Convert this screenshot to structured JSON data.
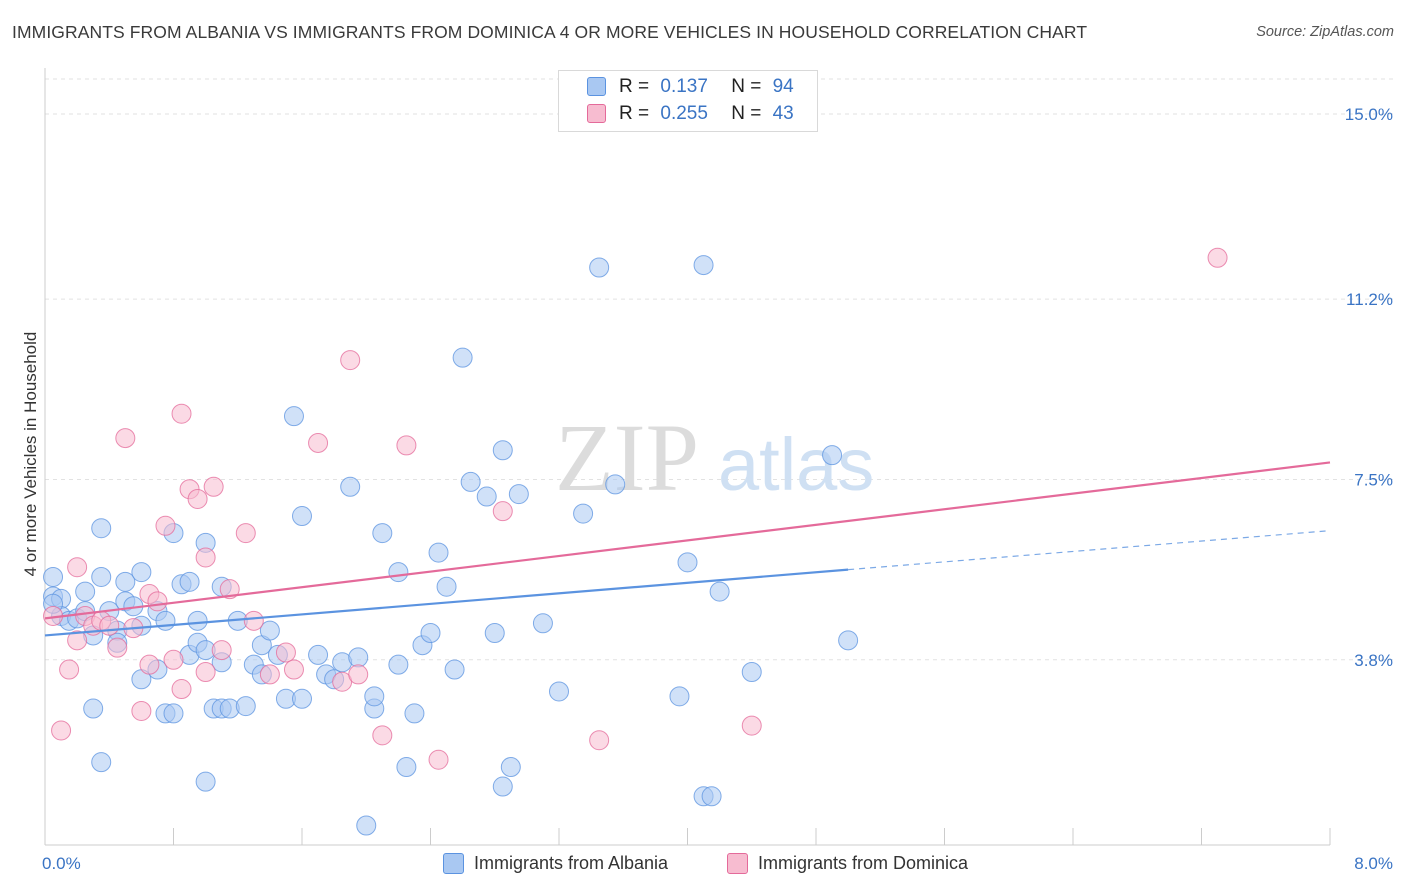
{
  "title": "IMMIGRANTS FROM ALBANIA VS IMMIGRANTS FROM DOMINICA 4 OR MORE VEHICLES IN HOUSEHOLD CORRELATION CHART",
  "source": "Source: ZipAtlas.com",
  "watermark": {
    "zip": "ZIP",
    "atlas": "atlas"
  },
  "legend": {
    "rows": [
      {
        "r_label": "R =",
        "r_value": "0.137",
        "n_label": "N =",
        "n_value": "94",
        "color": "#a9c8f2"
      },
      {
        "r_label": "R =",
        "r_value": "0.255",
        "n_label": "N =",
        "n_value": "43",
        "color": "#f7bcd0"
      }
    ]
  },
  "bottom_legend": [
    {
      "label": "Immigrants from Albania",
      "color": "#a9c8f2"
    },
    {
      "label": "Immigrants from Dominica",
      "color": "#f7bcd0"
    }
  ],
  "chart_data": {
    "type": "scatter",
    "title": "IMMIGRANTS FROM ALBANIA VS IMMIGRANTS FROM DOMINICA 4 OR MORE VEHICLES IN HOUSEHOLD CORRELATION CHART",
    "xlabel": "",
    "ylabel": "4 or more Vehicles in Household",
    "xlim": [
      0.0,
      8.0
    ],
    "ylim": [
      0.0,
      15.8
    ],
    "x_tick_labels": [
      "0.0%",
      "8.0%"
    ],
    "y_ticks": [
      3.8,
      7.5,
      11.2,
      15.0
    ],
    "y_tick_labels": [
      "3.8%",
      "7.5%",
      "11.2%",
      "15.0%"
    ],
    "grid": true,
    "legend_position": "top-center",
    "series": [
      {
        "name": "Immigrants from Albania",
        "color": "#5b93e0",
        "fill": "#a9c8f2",
        "r": 0.137,
        "n": 94,
        "trend": {
          "x": [
            0.0,
            5.0
          ],
          "y": [
            4.3,
            5.65
          ],
          "dashed_to": [
            8.0,
            6.45
          ]
        },
        "points": [
          [
            0.05,
            5.5
          ],
          [
            0.05,
            5.1
          ],
          [
            0.1,
            5.05
          ],
          [
            0.1,
            4.7
          ],
          [
            0.15,
            4.6
          ],
          [
            0.2,
            4.65
          ],
          [
            0.25,
            4.8
          ],
          [
            0.25,
            5.2
          ],
          [
            0.3,
            4.3
          ],
          [
            0.3,
            2.8
          ],
          [
            0.35,
            1.7
          ],
          [
            0.35,
            5.5
          ],
          [
            0.35,
            6.5
          ],
          [
            0.4,
            4.8
          ],
          [
            0.45,
            4.4
          ],
          [
            0.45,
            4.15
          ],
          [
            0.5,
            5.0
          ],
          [
            0.5,
            5.4
          ],
          [
            0.55,
            4.9
          ],
          [
            0.6,
            3.4
          ],
          [
            0.6,
            4.5
          ],
          [
            0.6,
            5.6
          ],
          [
            0.7,
            3.6
          ],
          [
            0.7,
            4.8
          ],
          [
            0.75,
            4.6
          ],
          [
            0.75,
            2.7
          ],
          [
            0.8,
            2.7
          ],
          [
            0.8,
            6.4
          ],
          [
            0.85,
            5.35
          ],
          [
            0.9,
            5.4
          ],
          [
            0.9,
            3.9
          ],
          [
            0.95,
            4.6
          ],
          [
            0.95,
            4.15
          ],
          [
            1.0,
            1.3
          ],
          [
            1.0,
            6.2
          ],
          [
            1.0,
            4.0
          ],
          [
            1.05,
            2.8
          ],
          [
            1.1,
            5.3
          ],
          [
            1.1,
            3.75
          ],
          [
            1.1,
            2.8
          ],
          [
            1.15,
            2.8
          ],
          [
            1.2,
            4.6
          ],
          [
            1.25,
            2.85
          ],
          [
            1.3,
            3.7
          ],
          [
            1.35,
            3.5
          ],
          [
            1.35,
            4.1
          ],
          [
            1.4,
            4.4
          ],
          [
            1.5,
            3.0
          ],
          [
            1.55,
            8.8
          ],
          [
            1.6,
            6.75
          ],
          [
            1.6,
            3.0
          ],
          [
            1.7,
            3.9
          ],
          [
            1.75,
            3.5
          ],
          [
            1.8,
            3.4
          ],
          [
            1.85,
            3.75
          ],
          [
            1.9,
            7.35
          ],
          [
            1.95,
            3.85
          ],
          [
            2.0,
            0.4
          ],
          [
            2.05,
            2.8
          ],
          [
            2.05,
            3.05
          ],
          [
            2.1,
            6.4
          ],
          [
            2.2,
            5.6
          ],
          [
            2.2,
            3.7
          ],
          [
            2.25,
            1.6
          ],
          [
            2.3,
            2.7
          ],
          [
            2.35,
            4.1
          ],
          [
            2.4,
            4.35
          ],
          [
            2.45,
            6.0
          ],
          [
            2.5,
            5.3
          ],
          [
            2.55,
            3.6
          ],
          [
            2.6,
            10.0
          ],
          [
            2.65,
            7.45
          ],
          [
            2.75,
            7.15
          ],
          [
            2.8,
            4.35
          ],
          [
            2.85,
            1.2
          ],
          [
            2.85,
            8.1
          ],
          [
            2.9,
            1.6
          ],
          [
            2.95,
            7.2
          ],
          [
            3.1,
            4.55
          ],
          [
            3.2,
            3.15
          ],
          [
            3.35,
            6.8
          ],
          [
            3.45,
            11.85
          ],
          [
            3.55,
            7.4
          ],
          [
            3.95,
            3.05
          ],
          [
            4.0,
            5.8
          ],
          [
            4.1,
            11.9
          ],
          [
            4.1,
            1.0
          ],
          [
            4.2,
            5.2
          ],
          [
            4.15,
            1.0
          ],
          [
            4.4,
            3.55
          ],
          [
            4.9,
            8.0
          ],
          [
            5.0,
            4.2
          ],
          [
            0.05,
            4.95
          ],
          [
            1.45,
            3.9
          ]
        ]
      },
      {
        "name": "Immigrants from Dominica",
        "color": "#e46a9a",
        "fill": "#f7bcd0",
        "r": 0.255,
        "n": 43,
        "trend": {
          "x": [
            0.0,
            8.0
          ],
          "y": [
            4.65,
            7.85
          ]
        },
        "points": [
          [
            0.05,
            4.7
          ],
          [
            0.1,
            2.35
          ],
          [
            0.15,
            3.6
          ],
          [
            0.2,
            5.7
          ],
          [
            0.2,
            4.2
          ],
          [
            0.25,
            4.7
          ],
          [
            0.3,
            4.5
          ],
          [
            0.35,
            4.6
          ],
          [
            0.4,
            4.5
          ],
          [
            0.45,
            4.05
          ],
          [
            0.5,
            8.35
          ],
          [
            0.55,
            4.45
          ],
          [
            0.6,
            2.75
          ],
          [
            0.65,
            5.15
          ],
          [
            0.65,
            3.7
          ],
          [
            0.7,
            5.0
          ],
          [
            0.75,
            6.55
          ],
          [
            0.8,
            3.8
          ],
          [
            0.85,
            3.2
          ],
          [
            0.85,
            8.85
          ],
          [
            0.9,
            7.3
          ],
          [
            0.95,
            7.1
          ],
          [
            1.0,
            5.9
          ],
          [
            1.05,
            7.35
          ],
          [
            1.1,
            4.0
          ],
          [
            1.15,
            5.25
          ],
          [
            1.25,
            6.4
          ],
          [
            1.3,
            4.6
          ],
          [
            1.4,
            3.5
          ],
          [
            1.5,
            3.95
          ],
          [
            1.55,
            3.6
          ],
          [
            1.7,
            8.25
          ],
          [
            1.85,
            3.35
          ],
          [
            1.9,
            9.95
          ],
          [
            1.95,
            3.5
          ],
          [
            2.1,
            2.25
          ],
          [
            2.25,
            8.2
          ],
          [
            2.45,
            1.75
          ],
          [
            2.85,
            6.85
          ],
          [
            3.45,
            2.15
          ],
          [
            4.4,
            2.45
          ],
          [
            7.3,
            12.05
          ],
          [
            1.0,
            3.55
          ]
        ]
      }
    ]
  }
}
